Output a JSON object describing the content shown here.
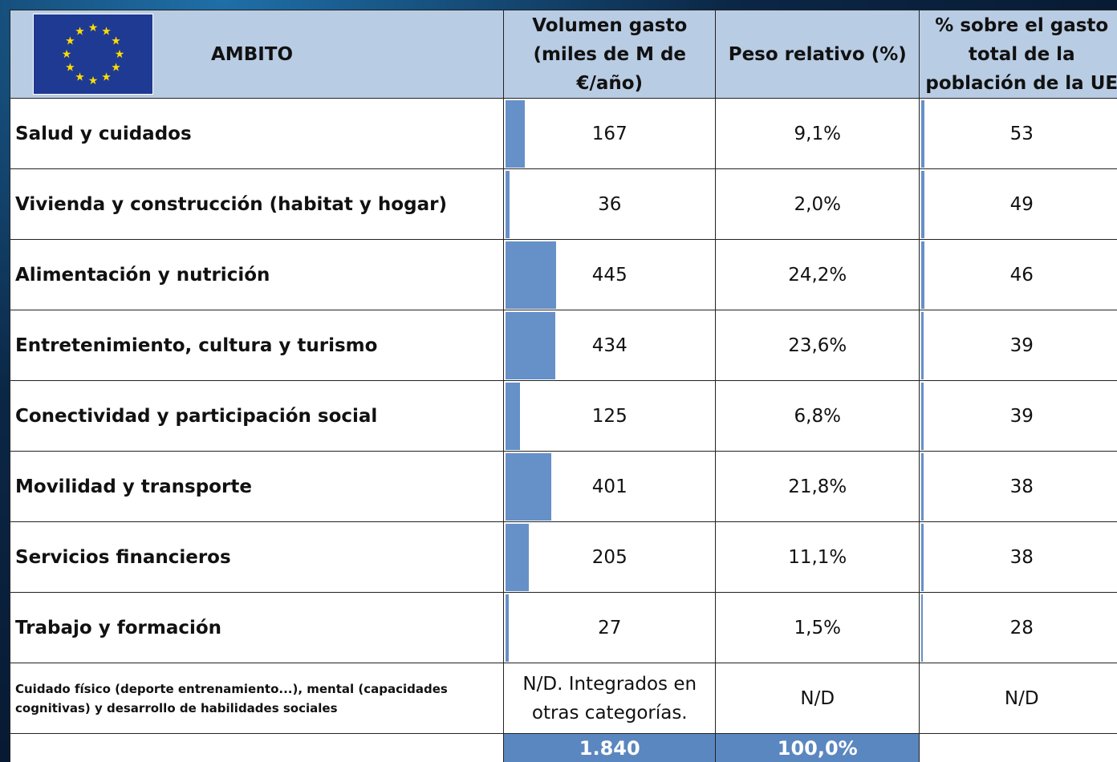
{
  "header": {
    "ambito": "AMBITO",
    "volumen": "Volumen gasto (miles de M de €/año)",
    "peso": "Peso relativo (%)",
    "porcentaje": "% sobre el gasto total de la población de la UE"
  },
  "rows": [
    {
      "ambito": "Salud y cuidados",
      "volumen": 167,
      "peso": "9,1%",
      "porcentaje": 53
    },
    {
      "ambito": "Vivienda y construcción (habitat y hogar)",
      "volumen": 36,
      "peso": "2,0%",
      "porcentaje": 49
    },
    {
      "ambito": "Alimentación y nutrición",
      "volumen": 445,
      "peso": "24,2%",
      "porcentaje": 46
    },
    {
      "ambito": "Entretenimiento, cultura y turismo",
      "volumen": 434,
      "peso": "23,6%",
      "porcentaje": 39
    },
    {
      "ambito": "Conectividad y participación social",
      "volumen": 125,
      "peso": "6,8%",
      "porcentaje": 39
    },
    {
      "ambito": "Movilidad y transporte",
      "volumen": 401,
      "peso": "21,8%",
      "porcentaje": 38
    },
    {
      "ambito": "Servicios financieros",
      "volumen": 205,
      "peso": "11,1%",
      "porcentaje": 38
    },
    {
      "ambito": "Trabajo y formación",
      "volumen": 27,
      "peso": "1,5%",
      "porcentaje": 28
    },
    {
      "ambito": "Cuidado físico (deporte entrenamiento...), mental (capacidades cognitivas) y desarrollo de habilidades sociales",
      "volumen": "N/D. Integrados en otras categorías.",
      "peso": "N/D",
      "porcentaje": "N/D"
    }
  ],
  "total": {
    "volumen": "1.840",
    "peso": "100,0%"
  }
}
